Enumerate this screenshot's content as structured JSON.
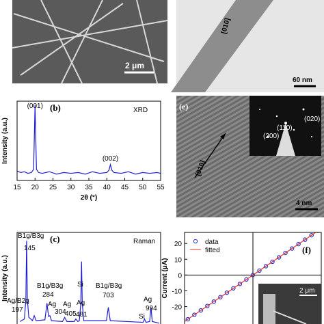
{
  "chart_data": [
    {
      "type": "line",
      "label": "(b)",
      "title": "XRD",
      "x_label": "2θ (°)",
      "y_label": "Intensity (a.u.)",
      "x": [
        15,
        16,
        17,
        18,
        19,
        19.6,
        20,
        20.4,
        21,
        22,
        24,
        26,
        28,
        30,
        32,
        34,
        36,
        38,
        40,
        40.6,
        41,
        41.4,
        42,
        44,
        46,
        48,
        50,
        52,
        54,
        55
      ],
      "series": [
        {
          "color": "#1f1fd0",
          "values": [
            12,
            10,
            11,
            9,
            10,
            14,
            95,
            14,
            10,
            9,
            11,
            8,
            10,
            9,
            10,
            8,
            11,
            9,
            10,
            13,
            20,
            13,
            10,
            9,
            11,
            8,
            10,
            9,
            10,
            9
          ]
        }
      ],
      "xlim": [
        15,
        55
      ],
      "xticks": [
        15,
        20,
        25,
        30,
        35,
        40,
        45,
        50,
        55
      ],
      "ylim": [
        0,
        100
      ],
      "annotations": [
        {
          "text": "(001)",
          "x": 20
        },
        {
          "text": "(002)",
          "x": 41
        }
      ]
    },
    {
      "type": "line",
      "label": "(c)",
      "title": "Raman",
      "y_label": "Intensity (a.u.)",
      "x": [
        100,
        130,
        140,
        145,
        150,
        160,
        185,
        197,
        210,
        270,
        284,
        295,
        304,
        315,
        390,
        405,
        420,
        470,
        481,
        495,
        505,
        515,
        520,
        525,
        535,
        690,
        703,
        716,
        940,
        950,
        960,
        985,
        994,
        1003,
        1050
      ],
      "series": [
        {
          "color": "#1f1fd0",
          "values": [
            3,
            6,
            30,
            100,
            30,
            8,
            4,
            10,
            4,
            5,
            25,
            9,
            10,
            4,
            3,
            8,
            3,
            3,
            6,
            3,
            4,
            25,
            75,
            25,
            4,
            4,
            20,
            4,
            2,
            6,
            2,
            3,
            20,
            3,
            1
          ]
        }
      ],
      "xlim": [
        80,
        1060
      ],
      "ylim": [
        0,
        110
      ],
      "peaks": [
        {
          "mode": "B1g/B3g",
          "x": 145
        },
        {
          "mode": "Ag/B2g",
          "x": 197
        },
        {
          "mode": "B1g/B3g",
          "x": 284
        },
        {
          "mode": "Ag",
          "x": 304
        },
        {
          "mode": "Ag",
          "x": 405
        },
        {
          "mode": "Ag",
          "x": 481
        },
        {
          "mode": "Si",
          "at": 520
        },
        {
          "mode": "B1g/B3g",
          "x": 703
        },
        {
          "mode": "Si",
          "at": 950
        },
        {
          "mode": "Ag",
          "x": 994
        }
      ]
    },
    {
      "type": "scatter",
      "label": "(f)",
      "y_label": "Current (μA)",
      "legend": "upper left",
      "series": [
        {
          "name": "data",
          "color": "#2233cc",
          "marker": "circle",
          "x": [
            -1,
            -0.9,
            -0.8,
            -0.7,
            -0.6,
            -0.5,
            -0.4,
            -0.3,
            -0.2,
            -0.1,
            0,
            0.1,
            0.2,
            0.3,
            0.4,
            0.5,
            0.6,
            0.7,
            0.8,
            0.9,
            1
          ],
          "values": [
            -28,
            -25.2,
            -22.4,
            -19.6,
            -16.8,
            -14,
            -11.2,
            -8.4,
            -5.6,
            -2.8,
            0,
            2.8,
            5.6,
            8.4,
            11.2,
            14,
            16.8,
            19.6,
            22.4,
            25.2,
            28
          ]
        },
        {
          "name": "fitted",
          "color": "#e03030",
          "x": [
            -1.1,
            1.1
          ],
          "values": [
            -30.8,
            30.8
          ]
        }
      ],
      "xlim": [
        -1.05,
        1.05
      ],
      "ylim": [
        -31,
        27
      ],
      "yticks": [
        -20,
        -10,
        0,
        10,
        20
      ]
    }
  ],
  "images": [
    {
      "scale_bar": "2 μm"
    },
    {
      "direction": "[010]",
      "scale_bar": "60 nm"
    },
    {
      "label": "(e)",
      "direction": "[010]",
      "scale_bar": "4 nm",
      "inset_spots": [
        "(020)",
        "(110)",
        "(200)"
      ]
    },
    {
      "scale_bar": "2 μm"
    }
  ]
}
